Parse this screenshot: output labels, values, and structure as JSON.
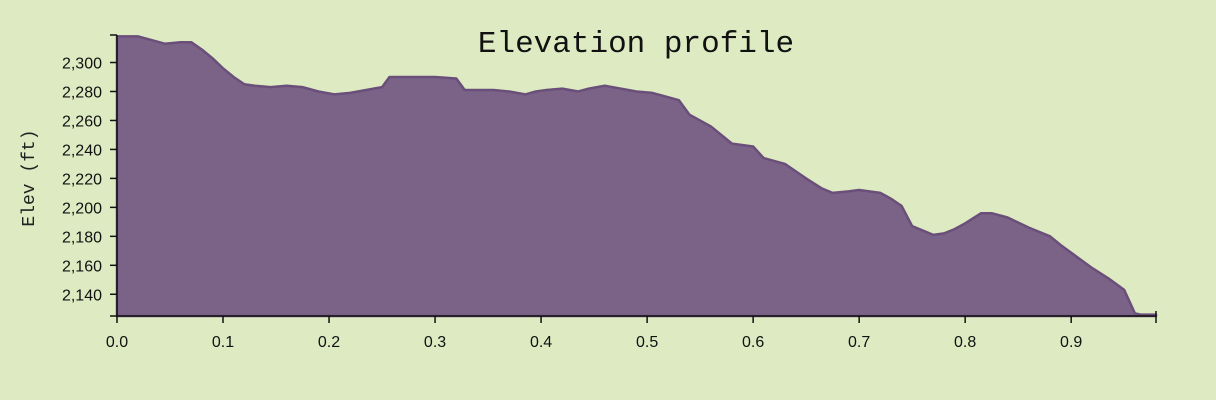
{
  "chart_data": {
    "type": "area",
    "title": "Elevation profile",
    "xlabel": "",
    "ylabel": "Elev (ft)",
    "xlim": [
      0,
      0.98
    ],
    "ylim": [
      2125,
      2319
    ],
    "xticks": [
      0.0,
      0.1,
      0.2,
      0.3,
      0.4,
      0.5,
      0.6,
      0.7,
      0.8,
      0.9
    ],
    "xtick_labels": [
      "0.0",
      "0.1",
      "0.2",
      "0.3",
      "0.4",
      "0.5",
      "0.6",
      "0.7",
      "0.8",
      "0.9"
    ],
    "yticks": [
      2140,
      2160,
      2180,
      2200,
      2220,
      2240,
      2260,
      2280,
      2300
    ],
    "ytick_labels": [
      "2,140",
      "2,160",
      "2,180",
      "2,200",
      "2,220",
      "2,240",
      "2,260",
      "2,280",
      "2,300"
    ],
    "grid": false,
    "colors": {
      "fill": "#7b6388",
      "stroke": "#6a4f7a",
      "background": "#deebc2"
    },
    "x": [
      0.0,
      0.02,
      0.03,
      0.045,
      0.06,
      0.07,
      0.08,
      0.09,
      0.1,
      0.11,
      0.12,
      0.13,
      0.145,
      0.16,
      0.175,
      0.19,
      0.205,
      0.22,
      0.235,
      0.25,
      0.257,
      0.263,
      0.28,
      0.3,
      0.32,
      0.328,
      0.34,
      0.355,
      0.37,
      0.385,
      0.395,
      0.405,
      0.42,
      0.435,
      0.445,
      0.46,
      0.475,
      0.49,
      0.505,
      0.515,
      0.53,
      0.54,
      0.56,
      0.58,
      0.6,
      0.61,
      0.63,
      0.65,
      0.665,
      0.675,
      0.69,
      0.7,
      0.72,
      0.73,
      0.74,
      0.75,
      0.77,
      0.78,
      0.79,
      0.8,
      0.815,
      0.825,
      0.84,
      0.86,
      0.88,
      0.89,
      0.905,
      0.92,
      0.935,
      0.95,
      0.96,
      0.965,
      0.97,
      0.98
    ],
    "values": [
      2318,
      2318,
      2316,
      2313,
      2314,
      2314,
      2309,
      2303,
      2296,
      2290,
      2285,
      2284,
      2283,
      2284,
      2283,
      2280,
      2278,
      2279,
      2281,
      2283,
      2290,
      2290,
      2290,
      2290,
      2289,
      2281,
      2281,
      2281,
      2280,
      2278,
      2280,
      2281,
      2282,
      2280,
      2282,
      2284,
      2282,
      2280,
      2279,
      2277,
      2274,
      2264,
      2256,
      2244,
      2242,
      2234,
      2230,
      2220,
      2213,
      2210,
      2211,
      2212,
      2210,
      2206,
      2201,
      2187,
      2181,
      2182,
      2185,
      2189,
      2196,
      2196,
      2193,
      2186,
      2180,
      2174,
      2166,
      2158,
      2151,
      2143,
      2127,
      2126,
      2126,
      2126
    ]
  }
}
